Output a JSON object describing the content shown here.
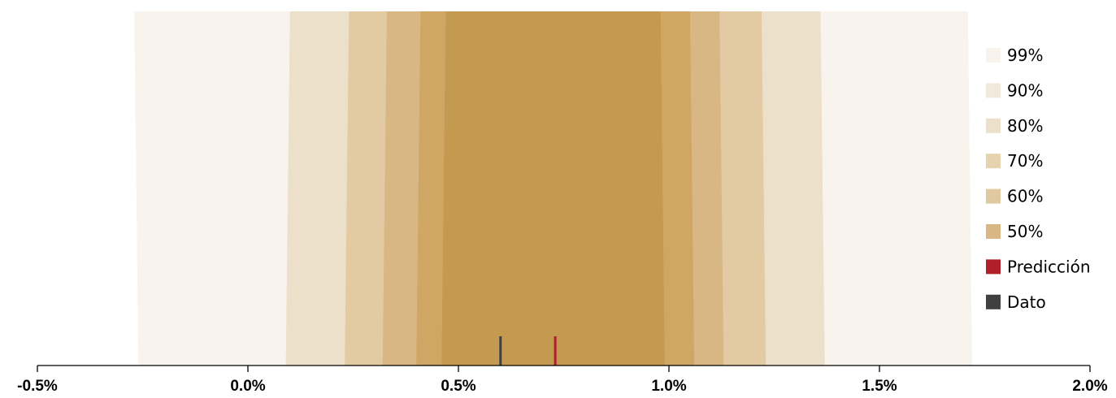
{
  "chart_data": {
    "type": "area",
    "title": "",
    "xlabel": "",
    "ylabel": "",
    "xlim": [
      -0.5,
      2.0
    ],
    "x_ticks": [
      -0.5,
      0.0,
      0.5,
      1.0,
      1.5,
      2.0
    ],
    "x_tick_labels": [
      "-0.5%",
      "0.0%",
      "0.5%",
      "1.0%",
      "1.5%",
      "2.0%"
    ],
    "grid": false,
    "legend_position": "right",
    "bands": [
      {
        "name": "99%",
        "lower": [
          -0.27,
          -0.26
        ],
        "upper": [
          1.71,
          1.72
        ],
        "color": "#f8f3ec"
      },
      {
        "name": "90%",
        "lower": [
          0.1,
          0.09
        ],
        "upper": [
          1.36,
          1.37
        ],
        "color": "#ede0ca"
      },
      {
        "name": "80%",
        "lower": [
          0.24,
          0.23
        ],
        "upper": [
          1.22,
          1.23
        ],
        "color": "#e2caa3"
      },
      {
        "name": "70%",
        "lower": [
          0.33,
          0.32
        ],
        "upper": [
          1.12,
          1.13
        ],
        "color": "#d9b784"
      },
      {
        "name": "60%",
        "lower": [
          0.41,
          0.4
        ],
        "upper": [
          1.05,
          1.06
        ],
        "color": "#cfa664"
      },
      {
        "name": "50%",
        "lower": [
          0.47,
          0.46
        ],
        "upper": [
          0.98,
          0.99
        ],
        "color": "#c49a50"
      }
    ],
    "markers": [
      {
        "name": "Predicción",
        "x": 0.73,
        "color": "#b0202a"
      },
      {
        "name": "Dato",
        "x": 0.6,
        "color": "#404040"
      }
    ],
    "legend": [
      {
        "label": "99%",
        "color": "#f8f3ec"
      },
      {
        "label": "90%",
        "color": "#f1e9db"
      },
      {
        "label": "80%",
        "color": "#ede0ca"
      },
      {
        "label": "70%",
        "color": "#e6d2ae"
      },
      {
        "label": "60%",
        "color": "#e0c9a0"
      },
      {
        "label": "50%",
        "color": "#d9b784"
      },
      {
        "label": "Predicción",
        "color": "#b0202a"
      },
      {
        "label": "Dato",
        "color": "#404040"
      }
    ]
  }
}
